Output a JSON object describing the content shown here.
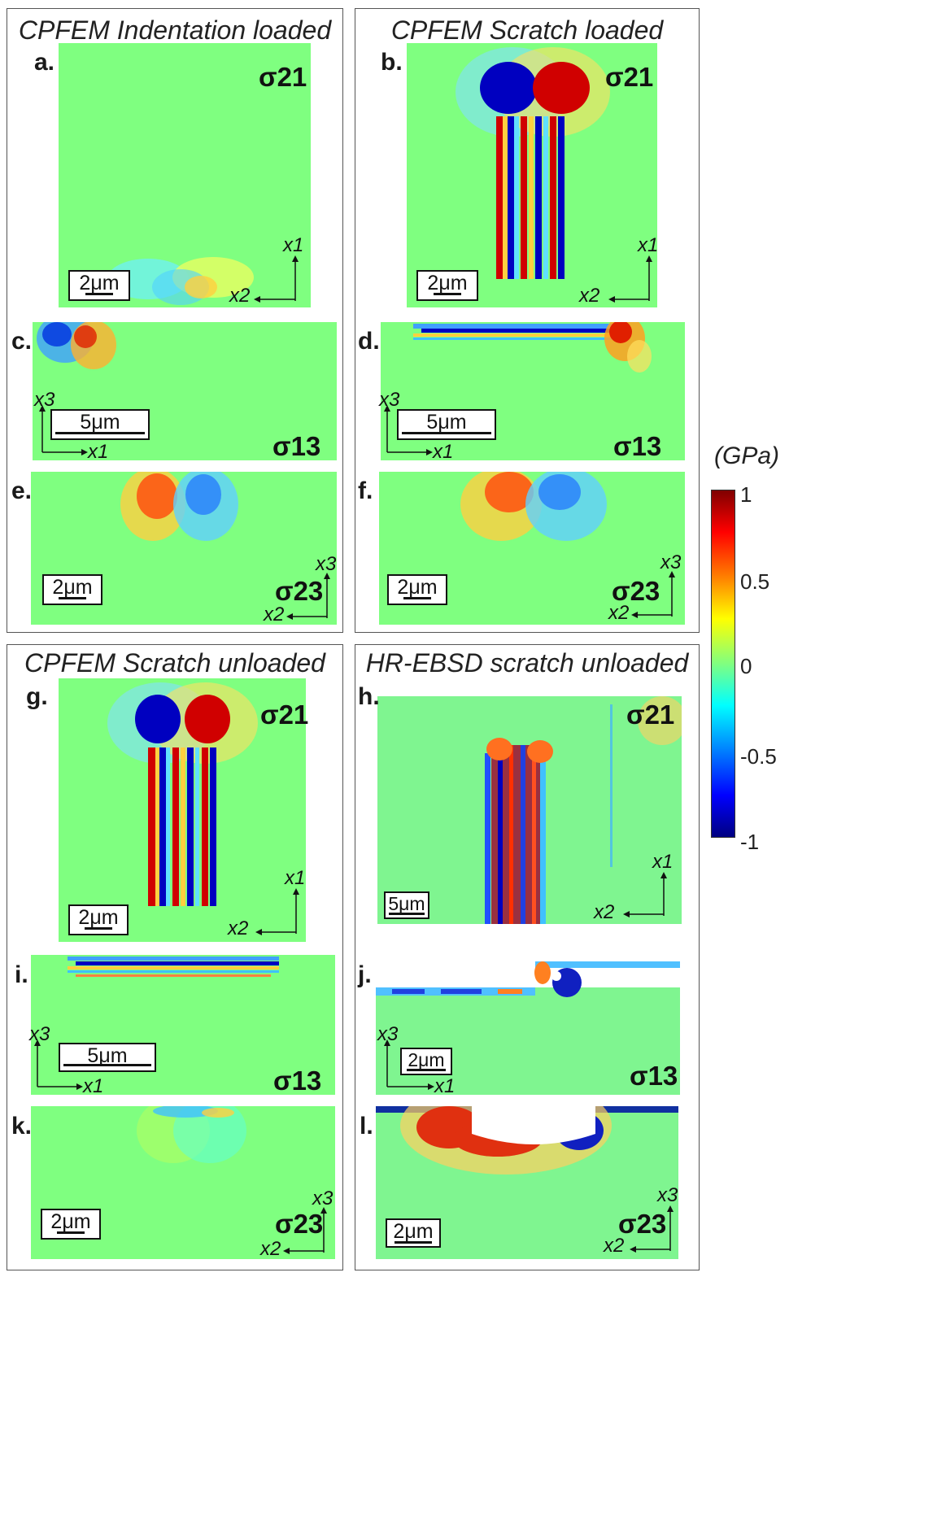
{
  "groups": {
    "indent_loaded": "CPFEM Indentation loaded",
    "scratch_loaded": "CPFEM Scratch loaded",
    "scratch_unloaded": "CPFEM Scratch unloaded",
    "ebsd_unloaded": "HR-EBSD scratch unloaded"
  },
  "panels": {
    "a": {
      "label": "a.",
      "comp": "σ21",
      "scale": "2μm",
      "ax_v": "x1",
      "ax_h": "x2"
    },
    "b": {
      "label": "b.",
      "comp": "σ21",
      "scale": "2μm",
      "ax_v": "x1",
      "ax_h": "x2"
    },
    "c": {
      "label": "c.",
      "comp": "σ13",
      "scale": "5μm",
      "ax_v": "x3",
      "ax_h": "x1"
    },
    "d": {
      "label": "d.",
      "comp": "σ13",
      "scale": "5μm",
      "ax_v": "x3",
      "ax_h": "x1"
    },
    "e": {
      "label": "e.",
      "comp": "σ23",
      "scale": "2μm",
      "ax_v": "x3",
      "ax_h": "x2"
    },
    "f": {
      "label": "f.",
      "comp": "σ23",
      "scale": "2μm",
      "ax_v": "x3",
      "ax_h": "x2"
    },
    "g": {
      "label": "g.",
      "comp": "σ21",
      "scale": "2μm",
      "ax_v": "x1",
      "ax_h": "x2"
    },
    "h": {
      "label": "h.",
      "comp": "σ21",
      "scale": "5μm",
      "ax_v": "x1",
      "ax_h": "x2"
    },
    "i": {
      "label": "i.",
      "comp": "σ13",
      "scale": "5μm",
      "ax_v": "x3",
      "ax_h": "x1"
    },
    "j": {
      "label": "j.",
      "comp": "σ13",
      "scale": "2μm",
      "ax_v": "x3",
      "ax_h": "x1"
    },
    "k": {
      "label": "k.",
      "comp": "σ23",
      "scale": "2μm",
      "ax_v": "x3",
      "ax_h": "x2"
    },
    "l": {
      "label": "l.",
      "comp": "σ23",
      "scale": "2μm",
      "ax_v": "x3",
      "ax_h": "x2"
    }
  },
  "colorbar": {
    "title": "(GPa)",
    "ticks": [
      "1",
      "0.5",
      "0",
      "-0.5",
      "-1"
    ],
    "range": [
      -1,
      1
    ],
    "colormap": "jet"
  },
  "colors": {
    "background_green": "#7fff80",
    "red": "#e00000",
    "blue": "#0000d0",
    "panel_border": "#555555"
  }
}
